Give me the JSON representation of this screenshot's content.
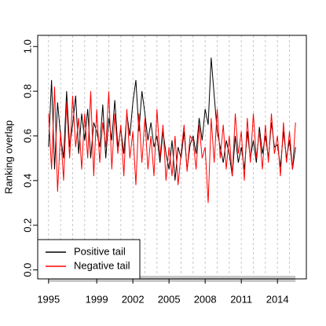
{
  "chart_data": {
    "type": "line",
    "ylabel": "Ranking overlap",
    "x": [
      1995,
      1995.25,
      1995.5,
      1995.75,
      1996,
      1996.25,
      1996.5,
      1996.75,
      1997,
      1997.25,
      1997.5,
      1997.75,
      1998,
      1998.25,
      1998.5,
      1998.75,
      1999,
      1999.25,
      1999.5,
      1999.75,
      2000,
      2000.25,
      2000.5,
      2000.75,
      2001,
      2001.25,
      2001.5,
      2001.75,
      2002,
      2002.25,
      2002.5,
      2002.75,
      2003,
      2003.25,
      2003.5,
      2003.75,
      2004,
      2004.25,
      2004.5,
      2004.75,
      2005,
      2005.25,
      2005.5,
      2005.75,
      2006,
      2006.25,
      2006.5,
      2006.75,
      2007,
      2007.25,
      2007.5,
      2007.75,
      2008,
      2008.25,
      2008.5,
      2008.75,
      2009,
      2009.25,
      2009.5,
      2009.75,
      2010,
      2010.25,
      2010.5,
      2010.75,
      2011,
      2011.25,
      2011.5,
      2011.75,
      2012,
      2012.25,
      2012.5,
      2012.75,
      2013,
      2013.25,
      2013.5,
      2013.75,
      2014,
      2014.25,
      2014.5,
      2014.75,
      2015,
      2015.25,
      2015.5
    ],
    "series": [
      {
        "name": "Positive tail",
        "color": "#000000",
        "values": [
          0.55,
          0.85,
          0.45,
          0.75,
          0.6,
          0.5,
          0.8,
          0.55,
          0.65,
          0.78,
          0.52,
          0.7,
          0.58,
          0.72,
          0.5,
          0.66,
          0.62,
          0.55,
          0.74,
          0.5,
          0.68,
          0.58,
          0.76,
          0.55,
          0.63,
          0.52,
          0.7,
          0.6,
          0.75,
          0.85,
          0.62,
          0.8,
          0.7,
          0.58,
          0.66,
          0.55,
          0.6,
          0.48,
          0.62,
          0.52,
          0.45,
          0.58,
          0.4,
          0.55,
          0.5,
          0.62,
          0.45,
          0.56,
          0.6,
          0.52,
          0.68,
          0.58,
          0.72,
          0.65,
          0.95,
          0.78,
          0.62,
          0.55,
          0.48,
          0.58,
          0.52,
          0.42,
          0.6,
          0.48,
          0.55,
          0.45,
          0.62,
          0.5,
          0.58,
          0.48,
          0.64,
          0.52,
          0.6,
          0.5,
          0.66,
          0.55,
          0.56,
          0.46,
          0.62,
          0.5,
          0.58,
          0.45,
          0.55
        ]
      },
      {
        "name": "Negative tail",
        "color": "#ff0000",
        "values": [
          0.7,
          0.45,
          0.82,
          0.35,
          0.62,
          0.4,
          0.75,
          0.5,
          0.78,
          0.55,
          0.68,
          0.45,
          0.7,
          0.5,
          0.8,
          0.42,
          0.72,
          0.48,
          0.66,
          0.55,
          0.8,
          0.45,
          0.7,
          0.52,
          0.65,
          0.42,
          0.72,
          0.5,
          0.62,
          0.38,
          0.7,
          0.48,
          0.68,
          0.45,
          0.6,
          0.42,
          0.72,
          0.5,
          0.65,
          0.4,
          0.55,
          0.42,
          0.6,
          0.38,
          0.52,
          0.65,
          0.44,
          0.6,
          0.58,
          0.45,
          0.65,
          0.5,
          0.55,
          0.3,
          0.68,
          0.48,
          0.72,
          0.5,
          0.65,
          0.45,
          0.6,
          0.42,
          0.7,
          0.52,
          0.62,
          0.4,
          0.68,
          0.48,
          0.7,
          0.5,
          0.62,
          0.45,
          0.65,
          0.48,
          0.7,
          0.52,
          0.6,
          0.42,
          0.66,
          0.48,
          0.62,
          0.45,
          0.66
        ]
      }
    ],
    "xlim": [
      1994.1,
      2016.4
    ],
    "xticks": [
      1995,
      1999,
      2002,
      2005,
      2008,
      2011,
      2014
    ],
    "xgrid": [
      1995,
      1996,
      1997,
      1998,
      1999,
      2000,
      2001,
      2002,
      2003,
      2004,
      2005,
      2006,
      2007,
      2008,
      2009,
      2010,
      2011,
      2012,
      2013,
      2014,
      2015
    ],
    "ylim": [
      -0.04,
      1.05
    ],
    "yticks": [
      {
        "value": 0,
        "label": "0.0"
      },
      0.2,
      0.4,
      0.6,
      0.8,
      {
        "value": 1,
        "label": "1.0"
      }
    ],
    "legend": "bottom-left"
  }
}
